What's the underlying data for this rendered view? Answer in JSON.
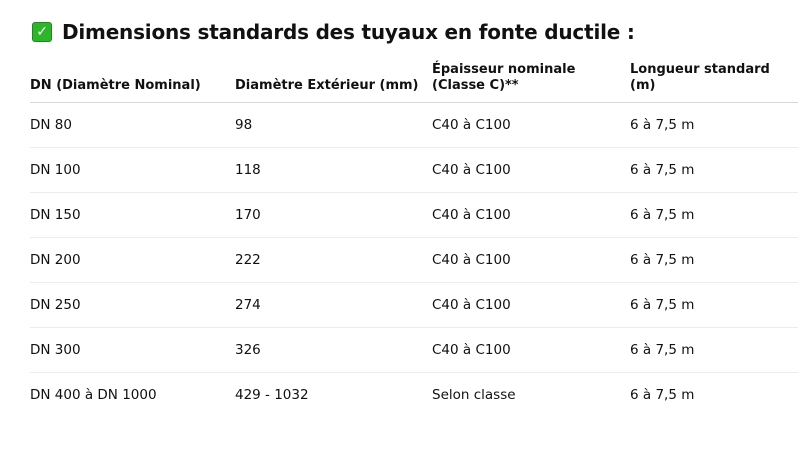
{
  "title": {
    "icon": "check-box-icon",
    "text": "Dimensions standards des tuyaux en fonte ductile :",
    "icon_color": "#2fb52c"
  },
  "table": {
    "headers": [
      "DN (Diamètre Nominal)",
      "Diamètre Extérieur (mm)",
      "Épaisseur nominale (Classe C)**",
      "Longueur standard (m)"
    ],
    "rows": [
      [
        "DN 80",
        "98",
        "C40 à C100",
        "6 à 7,5 m"
      ],
      [
        "DN 100",
        "118",
        "C40 à C100",
        "6 à 7,5 m"
      ],
      [
        "DN 150",
        "170",
        "C40 à C100",
        "6 à 7,5 m"
      ],
      [
        "DN 200",
        "222",
        "C40 à C100",
        "6 à 7,5 m"
      ],
      [
        "DN 250",
        "274",
        "C40 à C100",
        "6 à 7,5 m"
      ],
      [
        "DN 300",
        "326",
        "C40 à C100",
        "6 à 7,5 m"
      ],
      [
        "DN 400 à DN 1000",
        "429 - 1032",
        "Selon classe",
        "6 à 7,5 m"
      ]
    ]
  }
}
